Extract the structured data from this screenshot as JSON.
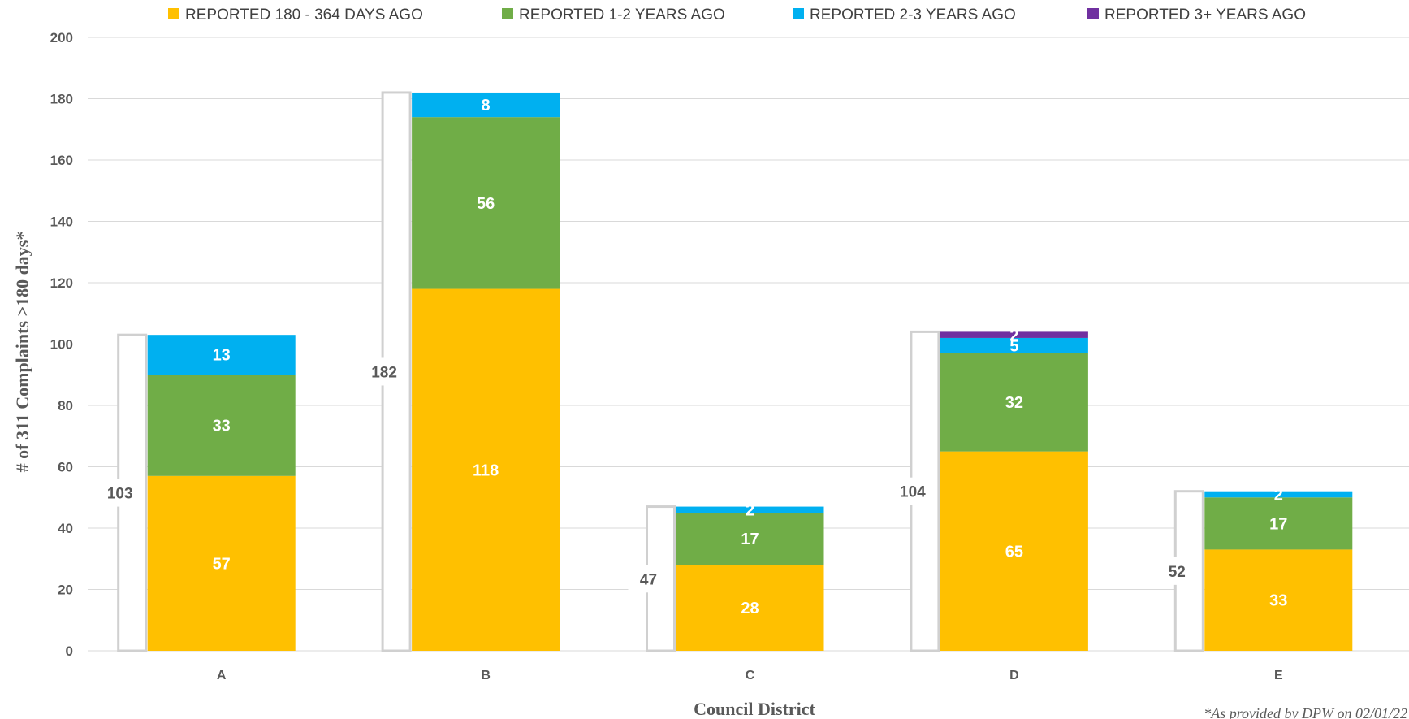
{
  "chart_data": {
    "type": "bar",
    "stacked": true,
    "categories": [
      "A",
      "B",
      "C",
      "D",
      "E"
    ],
    "series": [
      {
        "name": "REPORTED 180 - 364 DAYS AGO",
        "color": "#FFC000",
        "values": [
          57,
          118,
          28,
          65,
          33
        ]
      },
      {
        "name": "REPORTED 1-2 YEARS AGO",
        "color": "#70AD47",
        "values": [
          33,
          56,
          17,
          32,
          17
        ]
      },
      {
        "name": "REPORTED  2-3 YEARS AGO",
        "color": "#00B0F0",
        "values": [
          13,
          8,
          2,
          5,
          2
        ]
      },
      {
        "name": "REPORTED 3+ YEARS AGO",
        "color": "#7030A0",
        "values": [
          0,
          0,
          0,
          2,
          0
        ]
      }
    ],
    "totals": [
      103,
      182,
      47,
      104,
      52
    ],
    "xlabel": "Council District",
    "ylabel": "# of 311 Complaints >180 days*",
    "ylim": [
      0,
      200
    ],
    "yticks": [
      0,
      20,
      40,
      60,
      80,
      100,
      120,
      140,
      160,
      180,
      200
    ],
    "grid": true,
    "legend_position": "top",
    "footnote": "*As provided by DPW on 02/01/22"
  }
}
